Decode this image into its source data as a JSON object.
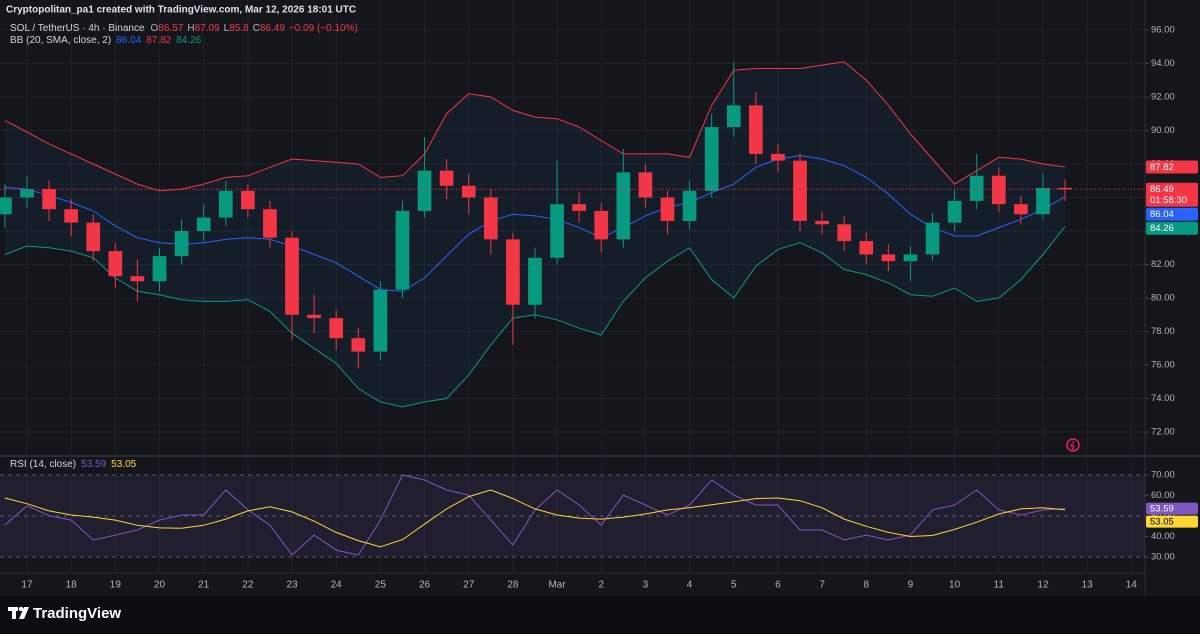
{
  "header": "Cryptopolitan_pa1 created with TradingView.com, Mar 12, 2026 18:01 UTC",
  "footer_brand": "TradingView",
  "chart_data": [
    {
      "type": "candlestick",
      "symbol": "SOL / TetherUS · 4h · Binance",
      "ohlc_labels": [
        "O",
        "H",
        "L",
        "C"
      ],
      "change_label": "−0.09 (−0.10%)",
      "countdown": "01:58:30",
      "indicator": "BB (20, SMA, close, 2)",
      "up_color": "#089981",
      "down_color": "#f23645",
      "fill_color": "rgba(33,150,243,0.06)",
      "grid": true,
      "x": [
        0.5,
        1.0,
        1.5,
        2.0,
        2.5,
        3.0,
        3.5,
        4.0,
        4.5,
        5.0,
        5.5,
        6.0,
        6.5,
        7.0,
        7.5,
        8.0,
        8.5,
        9.0,
        9.5,
        10.0,
        10.5,
        11.0,
        11.5,
        12.0,
        12.5,
        13.0,
        13.5,
        14.0,
        14.5,
        15.0,
        15.5,
        16.0,
        16.5,
        17.0,
        17.5,
        18.0,
        18.5,
        19.0,
        19.5,
        20.0,
        20.5,
        21.0,
        21.5,
        22.0,
        22.5,
        23.0,
        23.5,
        24.0,
        24.5
      ],
      "open": [
        85.0,
        86.0,
        86.5,
        85.3,
        84.5,
        82.8,
        81.3,
        81.0,
        82.5,
        84.0,
        84.8,
        86.4,
        85.3,
        83.6,
        79.0,
        78.8,
        77.6,
        76.8,
        80.5,
        85.2,
        87.6,
        86.7,
        86.0,
        83.5,
        79.6,
        82.4,
        85.6,
        85.2,
        83.5,
        87.5,
        86.0,
        84.6,
        86.4,
        90.2,
        91.5,
        88.6,
        88.2,
        84.6,
        84.4,
        83.4,
        82.6,
        82.2,
        82.6,
        84.5,
        85.8,
        87.3,
        85.6,
        85.0,
        86.57
      ],
      "high": [
        86.8,
        87.3,
        87.0,
        85.9,
        85.0,
        83.3,
        82.3,
        83.0,
        84.7,
        85.6,
        87.0,
        86.8,
        85.8,
        84.0,
        80.2,
        79.3,
        78.2,
        81.0,
        85.8,
        89.6,
        88.3,
        87.4,
        86.5,
        83.9,
        83.0,
        88.2,
        86.3,
        85.7,
        88.9,
        88.0,
        86.4,
        87.0,
        91.0,
        94.1,
        92.3,
        89.2,
        88.6,
        85.2,
        84.9,
        83.9,
        83.2,
        83.1,
        85.1,
        86.5,
        88.6,
        87.8,
        86.1,
        87.4,
        87.09
      ],
      "low": [
        84.2,
        85.4,
        84.6,
        83.7,
        82.2,
        80.6,
        79.8,
        80.4,
        82.0,
        83.4,
        84.3,
        84.8,
        83.0,
        77.5,
        77.9,
        76.9,
        75.8,
        76.3,
        80.0,
        84.8,
        85.9,
        85.0,
        82.6,
        77.2,
        78.8,
        82.0,
        84.5,
        82.7,
        83.0,
        85.4,
        83.8,
        84.1,
        86.0,
        89.6,
        88.0,
        87.5,
        84.0,
        83.8,
        82.8,
        82.0,
        81.6,
        81.0,
        82.2,
        84.0,
        85.3,
        85.1,
        84.4,
        84.7,
        85.8
      ],
      "close": [
        86.0,
        86.5,
        85.3,
        84.5,
        82.8,
        81.3,
        81.0,
        82.5,
        84.0,
        84.8,
        86.4,
        85.3,
        83.6,
        79.0,
        78.8,
        77.6,
        76.8,
        80.5,
        85.2,
        87.6,
        86.7,
        86.0,
        83.5,
        79.6,
        82.4,
        85.6,
        85.2,
        83.5,
        87.5,
        86.0,
        84.6,
        86.4,
        90.2,
        91.5,
        88.6,
        88.2,
        84.6,
        84.4,
        83.4,
        82.6,
        82.2,
        82.6,
        84.5,
        85.8,
        87.3,
        85.6,
        85.0,
        86.57,
        86.49
      ],
      "series": [
        {
          "color": "#f23645",
          "values": [
            90.6,
            89.9,
            89.2,
            88.6,
            88.0,
            87.4,
            86.8,
            86.4,
            86.5,
            86.8,
            87.2,
            87.3,
            87.8,
            88.3,
            88.2,
            88.1,
            88.0,
            87.2,
            87.3,
            88.6,
            91.0,
            92.2,
            92.0,
            91.2,
            90.8,
            90.7,
            90.2,
            89.4,
            88.6,
            88.6,
            88.6,
            88.4,
            91.5,
            93.6,
            93.7,
            93.7,
            93.7,
            93.9,
            94.1,
            93.0,
            91.5,
            89.8,
            88.3,
            86.8,
            87.6,
            88.4,
            88.3,
            88.0,
            87.82
          ]
        },
        {
          "color": "#2962ff",
          "values": [
            86.6,
            86.5,
            86.1,
            85.7,
            85.2,
            84.3,
            83.6,
            83.3,
            83.2,
            83.3,
            83.5,
            83.6,
            83.5,
            83.1,
            82.6,
            82.1,
            81.3,
            80.5,
            80.4,
            81.2,
            82.5,
            83.8,
            84.6,
            85.0,
            84.9,
            84.7,
            84.2,
            83.6,
            84.2,
            84.9,
            85.4,
            85.7,
            86.3,
            86.8,
            87.8,
            88.3,
            88.5,
            88.3,
            87.9,
            87.2,
            86.2,
            85.0,
            84.2,
            83.7,
            83.7,
            84.2,
            84.7,
            85.3,
            86.04
          ]
        },
        {
          "color": "#089981",
          "values": [
            82.6,
            83.1,
            83.0,
            82.8,
            82.4,
            81.2,
            80.4,
            80.2,
            79.9,
            79.8,
            79.8,
            79.9,
            79.2,
            77.9,
            77.0,
            76.1,
            74.6,
            73.8,
            73.5,
            73.8,
            74.0,
            75.4,
            77.2,
            78.8,
            79.0,
            78.7,
            78.2,
            77.8,
            79.8,
            81.2,
            82.2,
            83.0,
            81.1,
            80.0,
            81.9,
            82.9,
            83.3,
            82.7,
            81.7,
            81.4,
            80.9,
            80.2,
            80.1,
            80.6,
            79.8,
            80.0,
            81.1,
            82.6,
            84.26
          ]
        }
      ],
      "xlim": [
        0.57,
        26.31
      ],
      "ylim": [
        70.63,
        97.31
      ],
      "yticks": [
        {
          "value": 96,
          "label": "96.00"
        },
        {
          "value": 94,
          "label": "94.00"
        },
        {
          "value": 92,
          "label": "92.00"
        },
        {
          "value": 90,
          "label": "90.00"
        },
        {
          "value": 88,
          "label": "88.00"
        },
        {
          "value": 86,
          "label": "86.00"
        },
        {
          "value": 84,
          "label": "84.00"
        },
        {
          "value": 82,
          "label": "82.00"
        },
        {
          "value": 80,
          "label": "80.00"
        },
        {
          "value": 78,
          "label": "78.00"
        },
        {
          "value": 76,
          "label": "76.00"
        },
        {
          "value": 74,
          "label": "74.00"
        },
        {
          "value": 72,
          "label": "72.00"
        }
      ]
    },
    {
      "type": "line",
      "indicator": "RSI (14, close)",
      "band_color": "rgba(126,87,194,0.12)",
      "levels": [
        70,
        50,
        30
      ],
      "x": [
        0.5,
        1.0,
        1.5,
        2.0,
        2.5,
        3.0,
        3.5,
        4.0,
        4.5,
        5.0,
        5.5,
        6.0,
        6.5,
        7.0,
        7.5,
        8.0,
        8.5,
        9.0,
        9.5,
        10.0,
        10.5,
        11.0,
        11.5,
        12.0,
        12.5,
        13.0,
        13.5,
        14.0,
        14.5,
        15.0,
        15.5,
        16.0,
        16.5,
        17.0,
        17.5,
        18.0,
        18.5,
        19.0,
        19.5,
        20.0,
        20.5,
        21.0,
        21.5,
        22.0,
        22.5,
        23.0,
        23.5,
        24.0,
        24.5
      ],
      "series": [
        {
          "color": "#7e57c2",
          "values": [
            45.6,
            55.0,
            50.2,
            48.0,
            38.3,
            40.7,
            43.2,
            48.0,
            50.5,
            50.5,
            62.7,
            53.0,
            45.6,
            31.0,
            40.7,
            33.4,
            31.0,
            48.0,
            70.0,
            67.6,
            62.7,
            60.2,
            48.0,
            35.9,
            53.0,
            62.7,
            55.4,
            45.6,
            60.2,
            55.4,
            50.5,
            55.4,
            67.6,
            60.2,
            55.4,
            55.4,
            43.2,
            43.2,
            38.3,
            40.7,
            38.3,
            40.7,
            53.0,
            55.4,
            62.7,
            53.0,
            50.5,
            53.0,
            53.59
          ]
        },
        {
          "color": "#fdd835",
          "values": [
            58.8,
            56.0,
            52.5,
            50.5,
            49.5,
            48.0,
            45.5,
            44.2,
            44.0,
            45.5,
            48.5,
            52.5,
            54.5,
            52.0,
            47.5,
            42.0,
            38.0,
            35.0,
            38.5,
            46.0,
            53.5,
            59.5,
            62.7,
            58.5,
            53.5,
            50.5,
            49.0,
            48.5,
            49.5,
            51.0,
            53.0,
            54.0,
            55.5,
            57.0,
            58.5,
            58.8,
            57.5,
            54.0,
            48.5,
            45.0,
            42.0,
            40.0,
            40.5,
            43.5,
            47.0,
            51.0,
            53.5,
            54.0,
            53.05
          ]
        }
      ],
      "xlim": [
        0.57,
        26.31
      ],
      "ylim": [
        22.7,
        78.8
      ],
      "yticks": [
        {
          "value": 70,
          "label": "70.00"
        },
        {
          "value": 60,
          "label": "60.00"
        },
        {
          "value": 50,
          "label": "50.00"
        },
        {
          "value": 40,
          "label": "40.00"
        },
        {
          "value": 30,
          "label": "30.00"
        }
      ],
      "xticks": [
        {
          "value": 1,
          "label": "17"
        },
        {
          "value": 2,
          "label": "18"
        },
        {
          "value": 3,
          "label": "19"
        },
        {
          "value": 4,
          "label": "20"
        },
        {
          "value": 5,
          "label": "21"
        },
        {
          "value": 6,
          "label": "22"
        },
        {
          "value": 7,
          "label": "23"
        },
        {
          "value": 8,
          "label": "24"
        },
        {
          "value": 9,
          "label": "25"
        },
        {
          "value": 10,
          "label": "26"
        },
        {
          "value": 11,
          "label": "27"
        },
        {
          "value": 12,
          "label": "28"
        },
        {
          "value": 13,
          "label": "Mar"
        },
        {
          "value": 14,
          "label": "2"
        },
        {
          "value": 15,
          "label": "3"
        },
        {
          "value": 16,
          "label": "4"
        },
        {
          "value": 17,
          "label": "5"
        },
        {
          "value": 18,
          "label": "6"
        },
        {
          "value": 19,
          "label": "7"
        },
        {
          "value": 20,
          "label": "8"
        },
        {
          "value": 21,
          "label": "9"
        },
        {
          "value": 22,
          "label": "10"
        },
        {
          "value": 23,
          "label": "11"
        },
        {
          "value": 24,
          "label": "12"
        },
        {
          "value": 25,
          "label": "13"
        },
        {
          "value": 26,
          "label": "14"
        }
      ]
    }
  ]
}
